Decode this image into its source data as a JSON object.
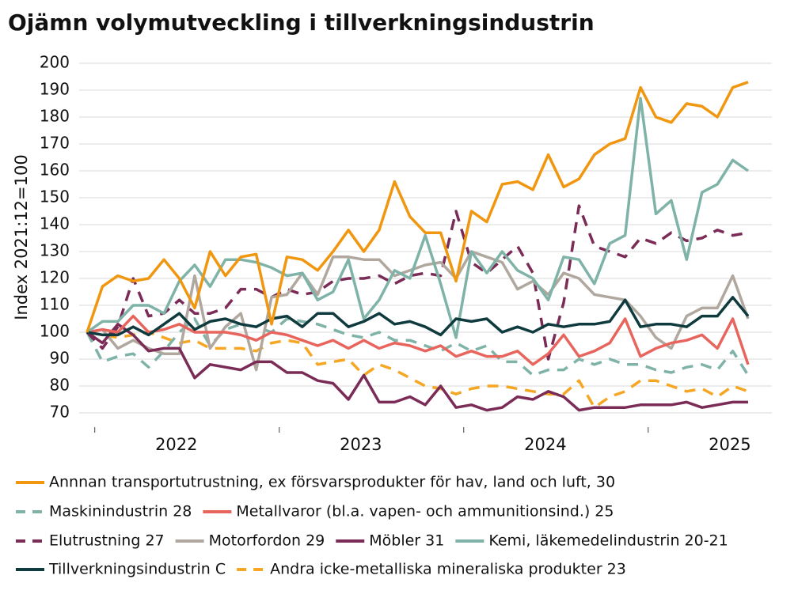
{
  "chart_data": {
    "type": "line",
    "title": "Ojämn volymutveckling i tillverkningsindustrin",
    "y_label": "Index 2021:12=100",
    "categories": [
      null,
      null,
      null,
      null,
      null,
      null,
      "2022",
      null,
      null,
      null,
      null,
      null,
      null,
      null,
      null,
      null,
      null,
      null,
      "2023",
      null,
      null,
      null,
      null,
      null,
      null,
      null,
      null,
      null,
      null,
      null,
      "2024",
      null,
      null,
      null,
      null,
      null,
      null,
      null,
      null,
      null,
      null,
      null,
      "2025",
      null
    ],
    "ylim": [
      70,
      200
    ],
    "yticks": [
      70,
      80,
      90,
      100,
      110,
      120,
      130,
      140,
      150,
      160,
      170,
      180,
      190,
      200
    ],
    "grid": true,
    "series": [
      {
        "name": "Annnan transportutrustning, ex försvarsprodukter för hav, land och luft, 30",
        "color": "#f0960f",
        "dashed": false,
        "values": [
          100,
          117,
          121,
          119,
          120,
          127,
          120,
          109,
          130,
          121,
          128,
          129,
          103,
          128,
          127,
          123,
          130,
          138,
          130,
          138,
          156,
          143,
          137,
          137,
          119,
          145,
          141,
          155,
          156,
          153,
          166,
          154,
          157,
          166,
          170,
          172,
          191,
          180,
          178,
          185,
          184,
          180,
          191,
          193
        ]
      },
      {
        "name": "Maskinindustrin 28",
        "color": "#7fb3a8",
        "dashed": true,
        "values": [
          100,
          89,
          91,
          92,
          87,
          93,
          100,
          105,
          95,
          101,
          103,
          102,
          100,
          105,
          104,
          103,
          101,
          99,
          98,
          100,
          97,
          97,
          95,
          93,
          96,
          93,
          95,
          89,
          89,
          84,
          86,
          86,
          90,
          88,
          90,
          88,
          88,
          86,
          85,
          87,
          88,
          86,
          93,
          84
        ]
      },
      {
        "name": "Metallvaror (bl.a. vapen- och ammunitionsind.) 25",
        "color": "#e8655e",
        "dashed": false,
        "values": [
          100,
          101,
          100,
          106,
          100,
          101,
          103,
          100,
          100,
          100,
          99,
          97,
          100,
          99,
          97,
          95,
          97,
          94,
          97,
          94,
          96,
          95,
          93,
          95,
          91,
          93,
          91,
          91,
          93,
          88,
          92,
          99,
          91,
          93,
          96,
          105,
          91,
          94,
          96,
          97,
          99,
          94,
          105,
          88
        ]
      },
      {
        "name": "Elutrustning 27",
        "color": "#7a2b56",
        "dashed": true,
        "values": [
          100,
          94,
          102,
          120,
          106,
          107,
          112,
          107,
          107,
          109,
          116,
          116,
          113,
          116,
          114,
          115,
          119,
          120,
          120,
          121,
          118,
          121,
          122,
          121,
          145,
          126,
          122,
          127,
          132,
          122,
          90,
          111,
          147,
          132,
          130,
          128,
          135,
          133,
          137,
          134,
          135,
          138,
          136,
          137
        ]
      },
      {
        "name": "Motorfordon 29",
        "color": "#b0a89e",
        "dashed": false,
        "values": [
          100,
          101,
          94,
          97,
          94,
          92,
          92,
          121,
          94,
          102,
          107,
          86,
          113,
          114,
          122,
          114,
          128,
          128,
          127,
          127,
          121,
          123,
          125,
          126,
          120,
          130,
          128,
          126,
          116,
          119,
          114,
          122,
          120,
          114,
          113,
          112,
          106,
          98,
          94,
          106,
          109,
          109,
          121,
          105
        ]
      },
      {
        "name": "Möbler 31",
        "color": "#7a2b56",
        "dashed": false,
        "values": [
          100,
          96,
          103,
          99,
          93,
          94,
          94,
          83,
          88,
          87,
          86,
          89,
          89,
          85,
          85,
          82,
          81,
          75,
          84,
          74,
          74,
          76,
          73,
          80,
          72,
          73,
          71,
          72,
          76,
          75,
          78,
          76,
          71,
          72,
          72,
          72,
          73,
          73,
          73,
          74,
          72,
          73,
          74,
          74
        ]
      },
      {
        "name": "Kemi, läkemedelindustrin 20-21",
        "color": "#7fb3a8",
        "dashed": false,
        "values": [
          100,
          104,
          104,
          110,
          110,
          107,
          119,
          125,
          117,
          127,
          127,
          126,
          124,
          121,
          122,
          112,
          115,
          127,
          105,
          112,
          123,
          120,
          136,
          118,
          98,
          130,
          122,
          130,
          123,
          120,
          112,
          128,
          127,
          118,
          133,
          136,
          187,
          144,
          149,
          127,
          152,
          155,
          164,
          160
        ]
      },
      {
        "name": "Tillverkningsindustrin C",
        "color": "#0f3b3f",
        "dashed": false,
        "values": [
          100,
          99,
          99,
          102,
          99,
          103,
          107,
          101,
          104,
          105,
          103,
          102,
          105,
          106,
          102,
          107,
          107,
          102,
          104,
          107,
          103,
          104,
          102,
          99,
          105,
          104,
          105,
          100,
          102,
          100,
          103,
          102,
          103,
          103,
          104,
          112,
          102,
          103,
          103,
          102,
          106,
          106,
          113,
          106
        ]
      },
      {
        "name": "Andra icke-metalliska mineraliska produkter 23",
        "color": "#f5a623",
        "dashed": true,
        "values": [
          100,
          99,
          98,
          99,
          100,
          98,
          96,
          97,
          94,
          94,
          94,
          93,
          96,
          97,
          96,
          88,
          89,
          90,
          84,
          88,
          86,
          83,
          80,
          79,
          77,
          79,
          80,
          80,
          79,
          78,
          77,
          77,
          82,
          72,
          76,
          78,
          82,
          82,
          80,
          78,
          79,
          76,
          80,
          78
        ]
      }
    ]
  }
}
